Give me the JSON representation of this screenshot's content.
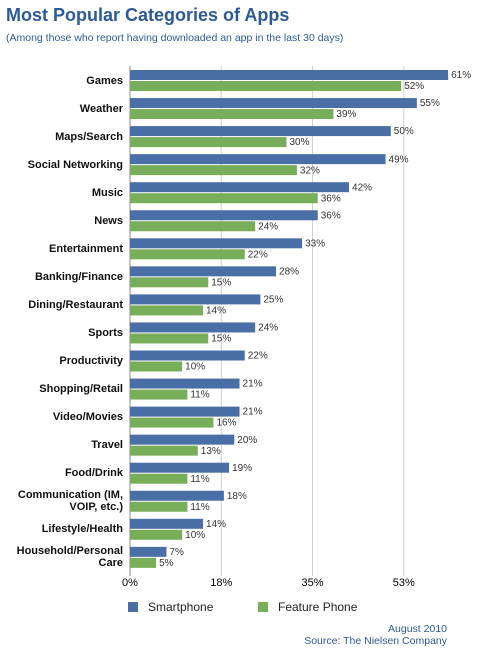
{
  "chart_data": {
    "type": "bar",
    "orientation": "horizontal",
    "title": "Most Popular Categories of Apps",
    "subtitle": "(Among those who report having downloaded an app in the last 30 days)",
    "categories": [
      "Games",
      "Weather",
      "Maps/Search",
      "Social Networking",
      "Music",
      "News",
      "Entertainment",
      "Banking/Finance",
      "Dining/Restaurant",
      "Sports",
      "Productivity",
      "Shopping/Retail",
      "Video/Movies",
      "Travel",
      "Food/Drink",
      "Communication (IM, VOIP, etc.)",
      "Lifestyle/Health",
      "Household/Personal Care"
    ],
    "series": [
      {
        "name": "Smartphone",
        "color": "#4a6ea6",
        "values": [
          61,
          55,
          50,
          49,
          42,
          36,
          33,
          28,
          25,
          24,
          22,
          21,
          21,
          20,
          19,
          18,
          14,
          7
        ],
        "value_labels": [
          "61%",
          "55%",
          "50%",
          "49%",
          "42%",
          "36%",
          "33%",
          "28%",
          "25%",
          "24%",
          "22%",
          "21%",
          "21%",
          "20%",
          "19%",
          "18%",
          "14%",
          "7%"
        ]
      },
      {
        "name": "Feature Phone",
        "color": "#78ad5a",
        "values": [
          52,
          39,
          30,
          32,
          36,
          24,
          22,
          15,
          14,
          15,
          10,
          11,
          16,
          13,
          11,
          11,
          10,
          5
        ],
        "value_labels": [
          "52%",
          "39%",
          "30%",
          "32%",
          "36%",
          "24%",
          "22%",
          "15%",
          "14%",
          "15%",
          "10%",
          "11%",
          "16%",
          "13%",
          "11%",
          "11%",
          "10%",
          "5%"
        ]
      }
    ],
    "xlim": [
      0,
      65
    ],
    "xticks": [
      {
        "value": 0,
        "label": "0%"
      },
      {
        "value": 17.5,
        "label": "18%"
      },
      {
        "value": 35,
        "label": "35%"
      },
      {
        "value": 52.5,
        "label": "53%"
      }
    ],
    "grid": true,
    "legend": "bottom",
    "date_note": "August 2010",
    "source": "Source: The Nielsen Company"
  }
}
